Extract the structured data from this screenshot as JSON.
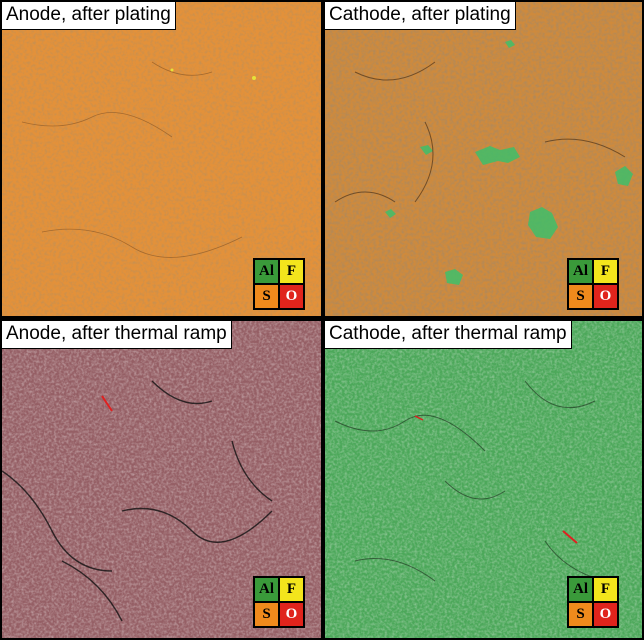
{
  "panels": [
    {
      "title": "Anode, after plating",
      "base": "#e08f3a"
    },
    {
      "title": "Cathode, after plating",
      "base": "#cf8a3c"
    },
    {
      "title": "Anode, after thermal ramp",
      "base": "#8a6a6e"
    },
    {
      "title": "Cathode, after thermal ramp",
      "base": "#4caa5a"
    }
  ],
  "legend": {
    "cells": [
      {
        "label": "Al",
        "color": "#3a9a3a",
        "text": "#000000"
      },
      {
        "label": "F",
        "color": "#f3e51c",
        "text": "#000000"
      },
      {
        "label": "S",
        "color": "#f08a1c",
        "text": "#000000"
      },
      {
        "label": "O",
        "color": "#e0241c",
        "text": "#ffffff"
      }
    ]
  }
}
